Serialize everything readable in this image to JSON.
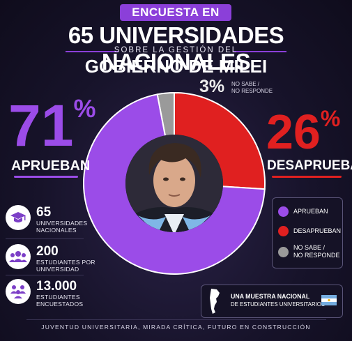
{
  "badge": "ENCUESTA EN",
  "title": "65 UNIVERSIDADES NACIONALES",
  "subtitle": "SOBRE LA GESTIÓN DEL",
  "title2": "GOBIERNO DE MILEI",
  "approve": {
    "pct_num": "71",
    "pct_sign": "%",
    "label": "APRUEBAN"
  },
  "disapprove": {
    "pct_num": "26",
    "pct_sign": "%",
    "label": "DESAPRUEBAN"
  },
  "nsnc": {
    "pct": "3%",
    "label1": "NO SABE /",
    "label2": "NO RESPONDE"
  },
  "stats": [
    {
      "icon": "graduation-cap-icon",
      "num": "65",
      "l1": "UNIVERSIDADES",
      "l2": "NACIONALES"
    },
    {
      "icon": "students-icon",
      "num": "200",
      "l1": "ESTUDIANTES POR",
      "l2": "UNIVERSIDAD"
    },
    {
      "icon": "group-icon",
      "num": "13.000",
      "l1": "ESTUDIANTES",
      "l2": "ENCUESTADOS"
    }
  ],
  "legend": [
    {
      "l1": "APRUEBAN",
      "l2": "",
      "color": "#9b4ce8"
    },
    {
      "l1": "DESAPRUEBAN",
      "l2": "",
      "color": "#e02020"
    },
    {
      "l1": "NO SABE /",
      "l2": "NO RESPONDE",
      "color": "#9a9a9a"
    }
  ],
  "sample": {
    "l1": "UNA MUESTRA NACIONAL",
    "l2": "DE ESTUDIANTES UNIVERSITARIOS"
  },
  "footer": "JUVENTUD UNIVERSITARIA, MIRADA CRÍTICA, FUTURO EN CONSTRUCCIÓN",
  "chart_data": {
    "type": "pie",
    "categories": [
      "APRUEBAN",
      "DESAPRUEBAN",
      "NO SABE / NO RESPONDE"
    ],
    "values": [
      71,
      26,
      3
    ],
    "colors": [
      "#9b4ce8",
      "#e02020",
      "#9a9a9a"
    ]
  }
}
